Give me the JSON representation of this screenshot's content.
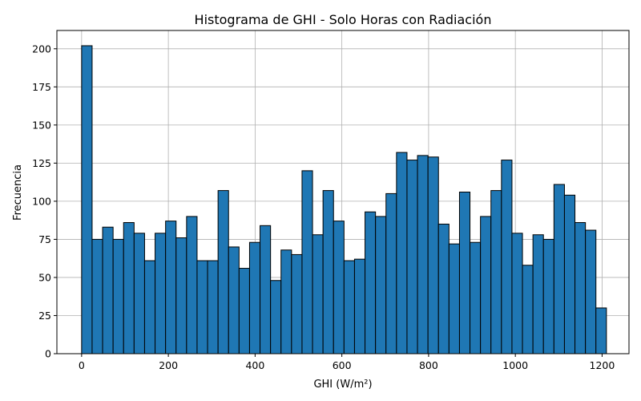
{
  "chart_data": {
    "type": "bar",
    "title": "Histograma de GHI - Solo Horas con Radiación",
    "xlabel": "GHI (W/m²)",
    "ylabel": "Frecuencia",
    "grid": true,
    "bar_color": "#1f77b4",
    "edge_color": "#000000",
    "xlim": [
      -57,
      1262
    ],
    "ylim": [
      0,
      212
    ],
    "xticks": [
      0,
      200,
      400,
      600,
      800,
      1000,
      1200
    ],
    "xtick_labels": [
      "0",
      "200",
      "400",
      "600",
      "800",
      "1000",
      "1200"
    ],
    "yticks": [
      0,
      25,
      50,
      75,
      100,
      125,
      150,
      175,
      200
    ],
    "ytick_labels": [
      "0",
      "25",
      "50",
      "75",
      "100",
      "125",
      "150",
      "175",
      "200"
    ],
    "bin_start": 0,
    "bin_width": 24.2,
    "values": [
      202,
      75,
      83,
      75,
      86,
      79,
      61,
      79,
      87,
      76,
      90,
      61,
      61,
      107,
      70,
      56,
      73,
      84,
      48,
      68,
      65,
      120,
      78,
      107,
      87,
      61,
      62,
      93,
      90,
      105,
      132,
      127,
      130,
      129,
      85,
      72,
      106,
      73,
      90,
      107,
      127,
      79,
      58,
      78,
      75,
      111,
      104,
      86,
      81,
      30
    ]
  }
}
